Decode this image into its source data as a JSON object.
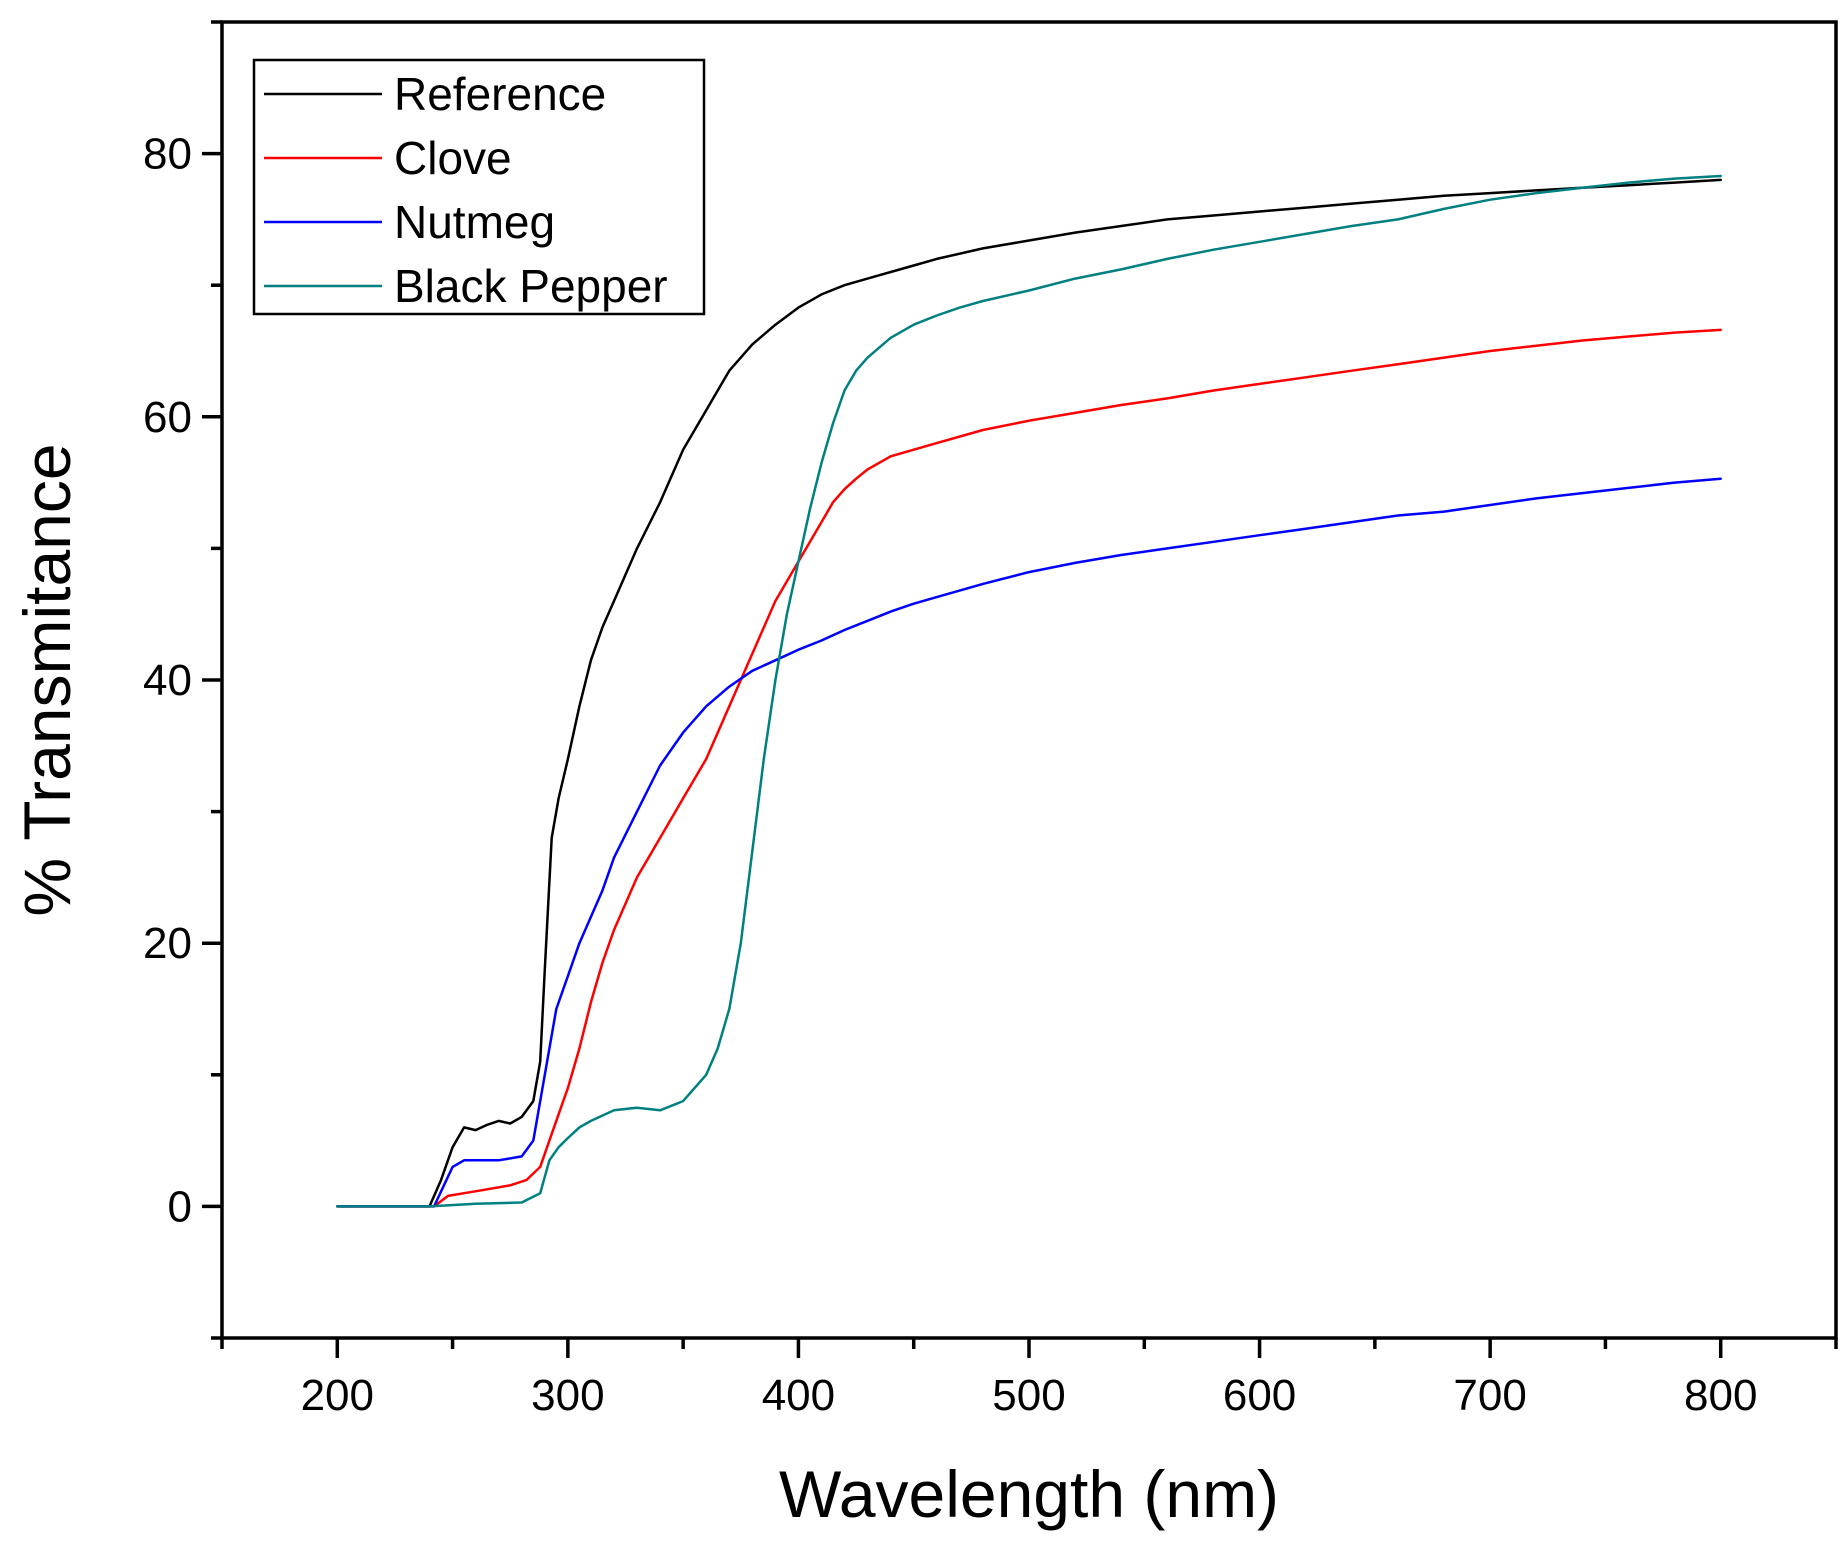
{
  "chart_data": {
    "type": "line",
    "title": "",
    "xlabel": "Wavelength (nm)",
    "ylabel": "% Transmitance",
    "xlim": [
      150,
      850
    ],
    "ylim": [
      -10,
      90
    ],
    "xticks": [
      200,
      300,
      400,
      500,
      600,
      700,
      800
    ],
    "yticks": [
      0,
      20,
      40,
      60,
      80
    ],
    "grid": false,
    "legend_position": "top-left",
    "series": [
      {
        "name": "Reference",
        "color": "#000000",
        "x": [
          200,
          240,
          245,
          250,
          255,
          260,
          265,
          270,
          275,
          280,
          285,
          288,
          290,
          293,
          296,
          300,
          305,
          310,
          315,
          320,
          330,
          340,
          350,
          360,
          370,
          380,
          390,
          400,
          410,
          420,
          430,
          440,
          450,
          460,
          480,
          500,
          520,
          540,
          560,
          580,
          600,
          620,
          640,
          660,
          680,
          700,
          720,
          740,
          760,
          780,
          800
        ],
        "y": [
          0,
          0,
          2,
          4.5,
          6,
          5.8,
          6.2,
          6.5,
          6.3,
          6.8,
          8,
          11,
          18,
          28,
          31,
          34,
          38,
          41.5,
          44,
          46,
          50,
          53.5,
          57.5,
          60.5,
          63.5,
          65.5,
          67,
          68.3,
          69.3,
          70,
          70.5,
          71,
          71.5,
          72,
          72.8,
          73.4,
          74,
          74.5,
          75,
          75.3,
          75.6,
          75.9,
          76.2,
          76.5,
          76.8,
          77,
          77.2,
          77.4,
          77.6,
          77.8,
          78
        ]
      },
      {
        "name": "Clove",
        "color": "#ff0000",
        "x": [
          200,
          242,
          248,
          255,
          265,
          275,
          282,
          288,
          292,
          296,
          300,
          305,
          310,
          315,
          320,
          330,
          340,
          350,
          360,
          370,
          380,
          390,
          400,
          405,
          410,
          415,
          420,
          425,
          430,
          440,
          450,
          460,
          480,
          500,
          520,
          540,
          560,
          580,
          600,
          620,
          640,
          660,
          680,
          700,
          720,
          740,
          760,
          780,
          800
        ],
        "y": [
          0,
          0,
          0.8,
          1,
          1.3,
          1.6,
          2,
          3,
          5,
          7,
          9,
          12,
          15.5,
          18.5,
          21,
          25,
          28,
          31,
          34,
          38,
          42,
          46,
          49,
          50.5,
          52,
          53.5,
          54.5,
          55.3,
          56,
          57,
          57.5,
          58,
          59,
          59.7,
          60.3,
          60.9,
          61.4,
          62,
          62.5,
          63,
          63.5,
          64,
          64.5,
          65,
          65.4,
          65.8,
          66.1,
          66.4,
          66.6
        ]
      },
      {
        "name": "Nutmeg",
        "color": "#0000ff",
        "x": [
          200,
          242,
          246,
          250,
          255,
          260,
          270,
          280,
          285,
          290,
          295,
          300,
          305,
          310,
          315,
          320,
          330,
          340,
          350,
          360,
          370,
          380,
          390,
          400,
          410,
          420,
          430,
          440,
          450,
          460,
          480,
          500,
          520,
          540,
          560,
          580,
          600,
          620,
          640,
          660,
          680,
          700,
          720,
          740,
          760,
          780,
          800
        ],
        "y": [
          0,
          0,
          1.5,
          3,
          3.5,
          3.5,
          3.5,
          3.8,
          5,
          10,
          15,
          17.5,
          20,
          22,
          24,
          26.5,
          30,
          33.5,
          36,
          38,
          39.5,
          40.7,
          41.5,
          42.3,
          43,
          43.8,
          44.5,
          45.2,
          45.8,
          46.3,
          47.3,
          48.2,
          48.9,
          49.5,
          50,
          50.5,
          51,
          51.5,
          52,
          52.5,
          52.8,
          53.3,
          53.8,
          54.2,
          54.6,
          55,
          55.3
        ]
      },
      {
        "name": "Black Pepper",
        "color": "#008080",
        "x": [
          200,
          240,
          260,
          280,
          288,
          292,
          296,
          300,
          305,
          310,
          320,
          330,
          340,
          350,
          360,
          365,
          370,
          375,
          380,
          385,
          390,
          395,
          400,
          405,
          410,
          415,
          420,
          425,
          430,
          440,
          450,
          460,
          470,
          480,
          500,
          520,
          540,
          560,
          580,
          600,
          620,
          640,
          660,
          680,
          700,
          720,
          740,
          760,
          780,
          800
        ],
        "y": [
          0,
          0,
          0.2,
          0.3,
          1,
          3.5,
          4.5,
          5.2,
          6,
          6.5,
          7.3,
          7.5,
          7.3,
          8,
          10,
          12,
          15,
          20,
          27,
          34,
          40,
          45,
          49,
          53,
          56.5,
          59.5,
          62,
          63.5,
          64.5,
          66,
          67,
          67.7,
          68.3,
          68.8,
          69.6,
          70.5,
          71.2,
          72,
          72.7,
          73.3,
          73.9,
          74.5,
          75,
          75.8,
          76.5,
          77,
          77.4,
          77.8,
          78.1,
          78.3
        ]
      }
    ]
  }
}
